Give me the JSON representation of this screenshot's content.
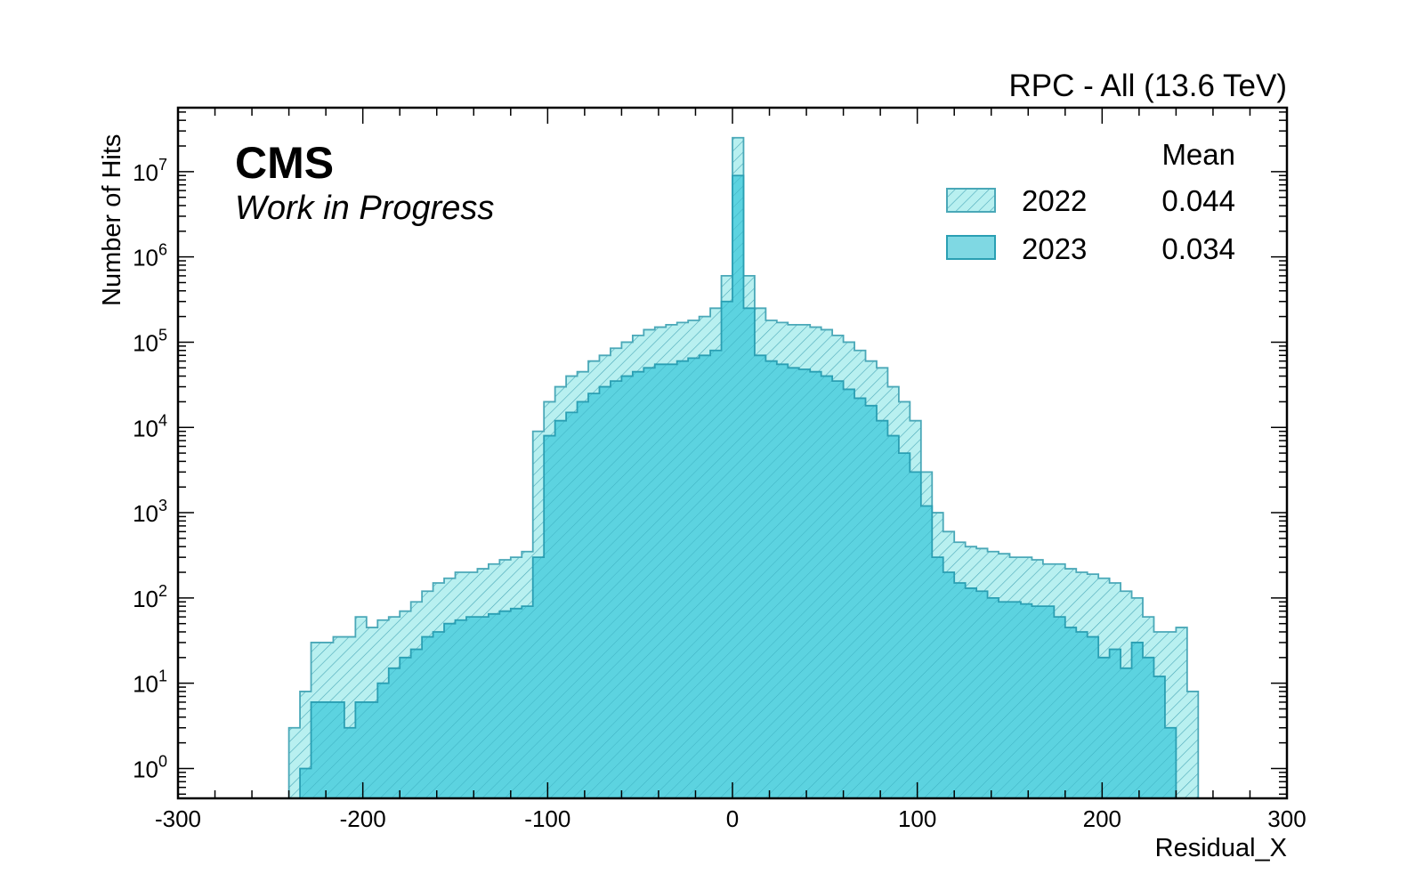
{
  "chart_data": {
    "type": "histogram",
    "title": "RPC - All (13.6 TeV)",
    "experiment_label": "CMS",
    "status_label": "Work in Progress",
    "xlabel": "Residual_X",
    "ylabel": "Number of Hits",
    "xlim": [
      -300,
      300
    ],
    "ylim_log10": [
      -0.35,
      7.75
    ],
    "y_scale": "log",
    "x_ticks": [
      -300,
      -200,
      -100,
      0,
      100,
      200,
      300
    ],
    "x_tick_labels": [
      "-300",
      "-200",
      "-100",
      "0",
      "100",
      "200",
      "300"
    ],
    "y_ticks_exp": [
      0,
      1,
      2,
      3,
      4,
      5,
      6,
      7
    ],
    "y_tick_base": "10",
    "bin_edges_start": -240,
    "bin_width": 6,
    "legend": {
      "placement": "top-right",
      "header": "Mean",
      "entries": [
        {
          "label": "2022",
          "mean": "0.044"
        },
        {
          "label": "2023",
          "mean": "0.034"
        }
      ]
    },
    "series": [
      {
        "name": "2022",
        "style": "hatched",
        "fill_color": "#b8f0f0",
        "edge_color": "#4aa8b8",
        "values": [
          3,
          8,
          30,
          30,
          35,
          35,
          60,
          45,
          55,
          60,
          70,
          90,
          120,
          150,
          170,
          200,
          200,
          220,
          250,
          280,
          300,
          350,
          9000,
          20000,
          30000,
          40000,
          45000,
          60000,
          70000,
          85000,
          100000,
          120000,
          140000,
          150000,
          160000,
          170000,
          180000,
          200000,
          250000,
          600000,
          25000000,
          600000,
          250000,
          180000,
          170000,
          160000,
          160000,
          150000,
          140000,
          120000,
          100000,
          80000,
          60000,
          50000,
          30000,
          20000,
          12000,
          3000,
          1000,
          600,
          450,
          400,
          380,
          350,
          330,
          300,
          300,
          280,
          250,
          250,
          220,
          200,
          190,
          170,
          150,
          120,
          100,
          60,
          40,
          40,
          45,
          8
        ]
      },
      {
        "name": "2023",
        "style": "solid",
        "fill_color": "#5cd3e0",
        "edge_color": "#2a9fb3",
        "values": [
          0.3,
          1,
          6,
          6,
          6,
          3,
          6,
          6,
          10,
          15,
          20,
          25,
          35,
          40,
          50,
          55,
          60,
          60,
          65,
          70,
          75,
          80,
          300,
          8000,
          12000,
          15000,
          20000,
          25000,
          30000,
          35000,
          40000,
          45000,
          50000,
          55000,
          55000,
          60000,
          65000,
          70000,
          80000,
          300000,
          9000000,
          250000,
          70000,
          60000,
          55000,
          50000,
          48000,
          45000,
          40000,
          35000,
          28000,
          22000,
          18000,
          12000,
          8000,
          5000,
          3000,
          1200,
          300,
          200,
          150,
          130,
          120,
          100,
          90,
          90,
          85,
          80,
          80,
          60,
          45,
          40,
          35,
          20,
          25,
          15,
          30,
          20,
          12,
          3,
          0.3
        ]
      }
    ]
  }
}
